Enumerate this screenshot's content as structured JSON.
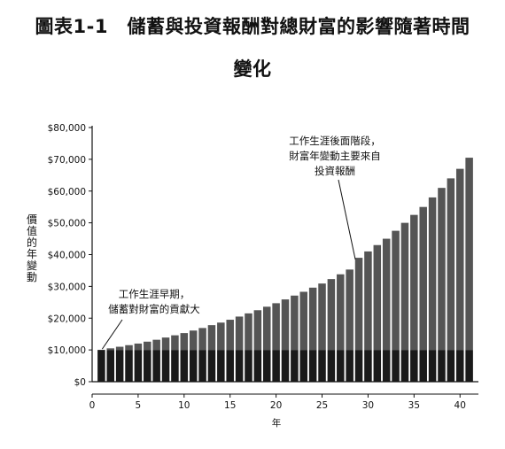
{
  "title_line1": "圖表1-1　儲蓄與投資報酬對總財富的影響隨著時間",
  "title_line2": "變化",
  "chart_data": {
    "type": "bar",
    "stacked": true,
    "ylabel": "價值的年變動",
    "xlabel": "年",
    "xlim": [
      0,
      42
    ],
    "ylim": [
      0,
      80000
    ],
    "xticks": [
      0,
      5,
      10,
      15,
      20,
      25,
      30,
      35,
      40
    ],
    "yticks": [
      0,
      10000,
      20000,
      30000,
      40000,
      50000,
      60000,
      70000,
      80000
    ],
    "ytick_labels": [
      "$0",
      "$10,000",
      "$20,000",
      "$30,000",
      "$40,000",
      "$50,000",
      "$60,000",
      "$70,000",
      "$80,000"
    ],
    "x": [
      1,
      2,
      3,
      4,
      5,
      6,
      7,
      8,
      9,
      10,
      11,
      12,
      13,
      14,
      15,
      16,
      17,
      18,
      19,
      20,
      21,
      22,
      23,
      24,
      25,
      26,
      27,
      28,
      29,
      30,
      31,
      32,
      33,
      34,
      35,
      36,
      37,
      38,
      39,
      40,
      41
    ],
    "series": [
      {
        "values": [
          10000,
          10000,
          10000,
          10000,
          10000,
          10000,
          10000,
          10000,
          10000,
          10000,
          10000,
          10000,
          10000,
          10000,
          10000,
          10000,
          10000,
          10000,
          10000,
          10000,
          10000,
          10000,
          10000,
          10000,
          10000,
          10000,
          10000,
          10000,
          10000,
          10000,
          10000,
          10000,
          10000,
          10000,
          10000,
          10000,
          10000,
          10000,
          10000,
          10000,
          10000
        ],
        "color": "#1a1a1a"
      },
      {
        "values": [
          0,
          500,
          1000,
          1500,
          2000,
          2600,
          3200,
          3900,
          4600,
          5300,
          6100,
          6900,
          7800,
          8600,
          9500,
          10500,
          11500,
          12500,
          13600,
          14700,
          15900,
          17100,
          18300,
          19600,
          20900,
          22300,
          23800,
          25300,
          29000,
          31000,
          33000,
          35000,
          37500,
          40000,
          42500,
          45000,
          48000,
          51000,
          54000,
          57000,
          60500
        ],
        "color": "#555555"
      }
    ],
    "annotations": [
      {
        "lines": [
          "工作生涯後面階段，",
          "財富年變動主要來自",
          "投資報酬"
        ],
        "points_to_x": 29,
        "points_to_y": 38500
      },
      {
        "lines": [
          "工作生涯早期，",
          "儲蓄對財富的貢獻大"
        ],
        "points_to_x": 1,
        "points_to_y": 10000
      }
    ]
  }
}
